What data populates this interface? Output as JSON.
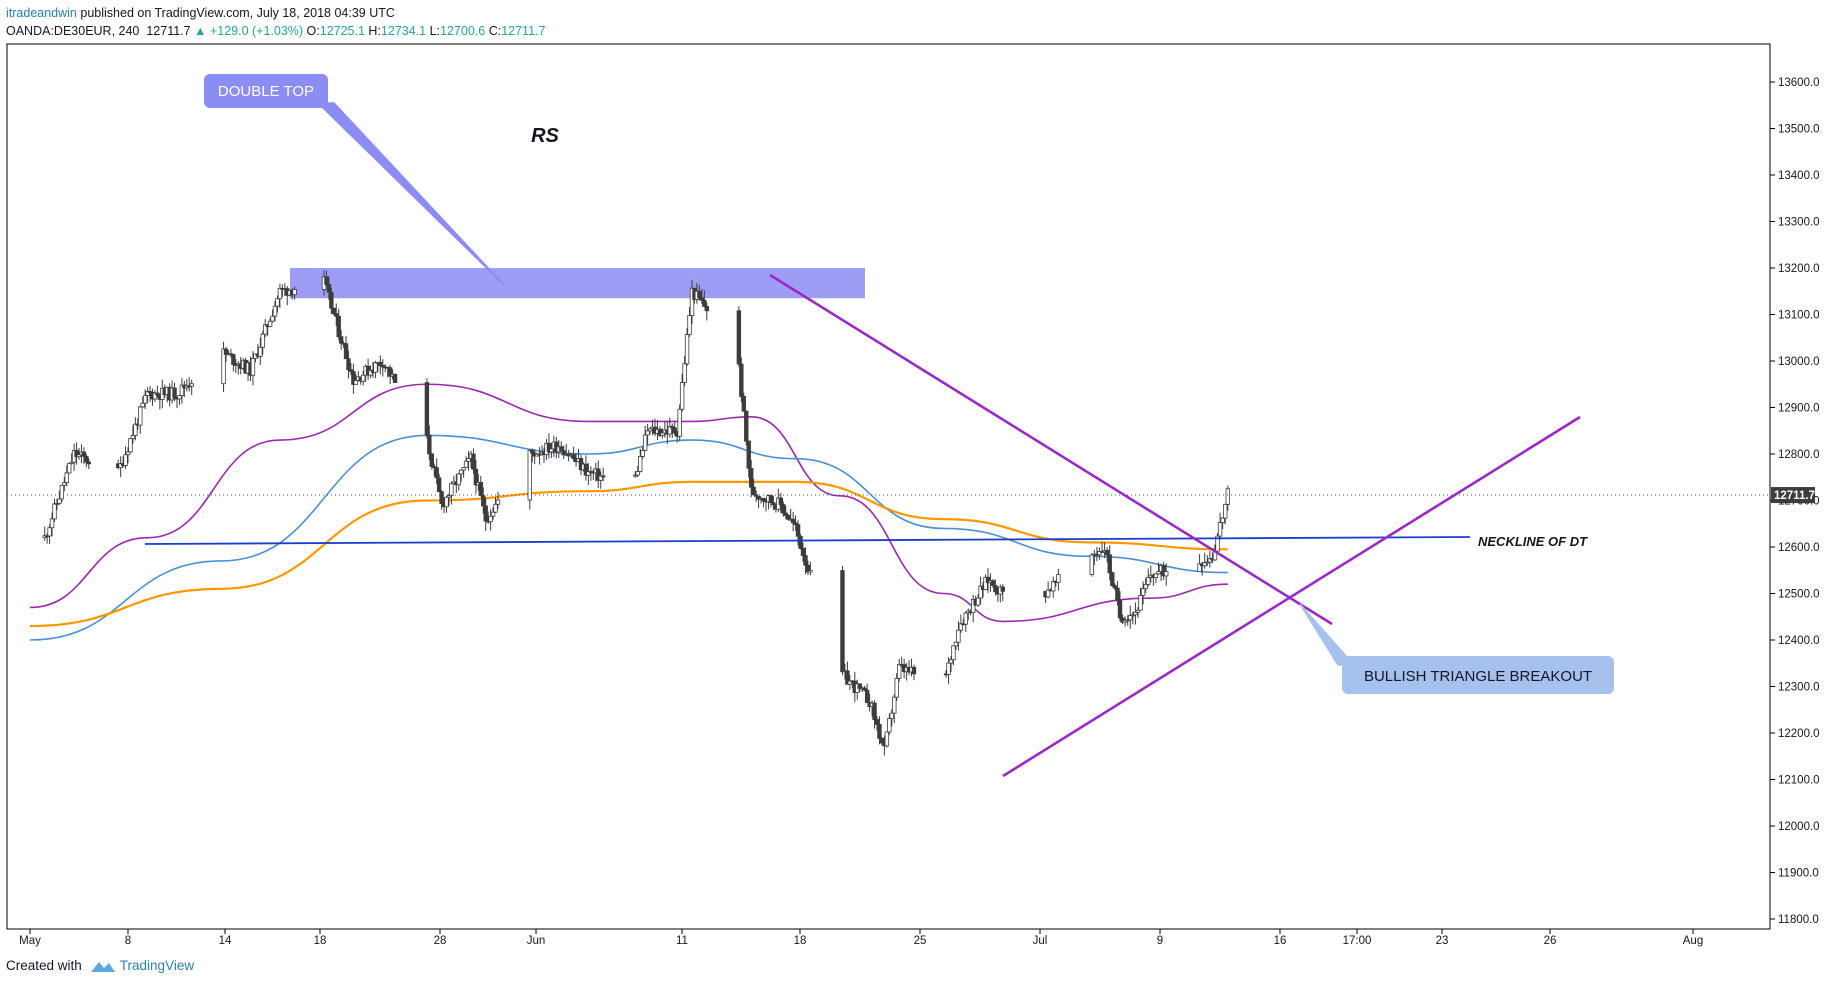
{
  "header": {
    "author": "itradeandwin",
    "published": "published on TradingView.com, July 18, 2018 04:39 UTC",
    "symbol": "OANDA:DE30EUR, 240",
    "last": "12711.7",
    "change": "▲ +129.0 (+1.03%)",
    "o_label": "O:",
    "o_value": "12725.1",
    "h_label": "H:",
    "h_value": "12734.1",
    "l_label": "L:",
    "l_value": "12700.6",
    "c_label": "C:",
    "c_value": "12711.7"
  },
  "footer": {
    "created_with": "Created with",
    "brand": "TradingView"
  },
  "colors": {
    "up": "#ffffff",
    "down": "#3c3c3c",
    "wick": "#3c3c3c",
    "ma_purple": "#9c27b0",
    "ma_blue": "#4a90d9",
    "ma_orange": "#ff9800",
    "trend": "#9c27c9",
    "neckline": "#1a3dcc",
    "zone": "#8c8cf5",
    "callout_top": "#8c8cf5",
    "callout_break": "#a6c1ee"
  },
  "chart_data": {
    "type": "candlestick",
    "title": "",
    "ylim": [
      11770,
      13680
    ],
    "y_ticks": [
      "11800.0",
      "11900.0",
      "12000.0",
      "12100.0",
      "12200.0",
      "12300.0",
      "12400.0",
      "12500.0",
      "12600.0",
      "12700.0",
      "12800.0",
      "12900.0",
      "13000.0",
      "13100.0",
      "13200.0",
      "13300.0",
      "13400.0",
      "13500.0",
      "13600.0"
    ],
    "x_ticks": [
      "May",
      "8",
      "14",
      "18",
      "28",
      "Jun",
      "11",
      "18",
      "25",
      "Jul",
      "9",
      "16",
      "17:00",
      "23",
      "26",
      "Aug"
    ],
    "last_price_label": "12711.7",
    "annotations": {
      "double_top": "DOUBLE TOP",
      "rs": "RS",
      "neckline": "NECKLINE OF DT",
      "breakout": "BULLISH TRIANGLE BREAKOUT"
    },
    "double_top_zone": [
      13135,
      13200
    ],
    "neckline_level": 12615,
    "anchors": [
      [
        "May 2",
        12620
      ],
      [
        "May 4",
        12800
      ],
      [
        "May 7",
        12760
      ],
      [
        "May 9",
        12930
      ],
      [
        "May 11",
        12930
      ],
      [
        "May 14",
        13020
      ],
      [
        "May 16",
        12980
      ],
      [
        "May 18",
        13150
      ],
      [
        "May 21",
        13170
      ],
      [
        "May 23",
        12960
      ],
      [
        "May 25",
        13000
      ],
      [
        "May 28",
        12830
      ],
      [
        "May 29",
        12690
      ],
      [
        "May 31",
        12790
      ],
      [
        "Jun 1",
        12660
      ],
      [
        "Jun 4",
        12800
      ],
      [
        "Jun 6",
        12820
      ],
      [
        "Jun 8",
        12760
      ],
      [
        "Jun 11",
        12730
      ],
      [
        "Jun 12",
        12850
      ],
      [
        "Jun 14",
        12850
      ],
      [
        "Jun 15",
        13150
      ],
      [
        "Jun 18",
        13040
      ],
      [
        "Jun 19",
        12720
      ],
      [
        "Jun 21",
        12690
      ],
      [
        "Jun 22",
        12640
      ],
      [
        "Jun 25",
        12330
      ],
      [
        "Jun 27",
        12270
      ],
      [
        "Jun 28",
        12160
      ],
      [
        "Jun 29",
        12340
      ],
      [
        "Jul 2",
        12300
      ],
      [
        "Jul 3",
        12430
      ],
      [
        "Jul 5",
        12530
      ],
      [
        "Jul 6",
        12500
      ],
      [
        "Jul 9",
        12580
      ],
      [
        "Jul 10",
        12600
      ],
      [
        "Jul 11",
        12450
      ],
      [
        "Jul 12",
        12460
      ],
      [
        "Jul 13",
        12540
      ],
      [
        "Jul 16",
        12570
      ],
      [
        "Jul 17",
        12580
      ],
      [
        "Jul 18",
        12712
      ]
    ],
    "moving_averages": [
      {
        "color": "#9c27b0",
        "points": [
          [
            "May 1",
            12470
          ],
          [
            "May 9",
            12620
          ],
          [
            "May 18",
            12830
          ],
          [
            "May 28",
            12950
          ],
          [
            "Jun 8",
            12870
          ],
          [
            "Jun 15",
            12870
          ],
          [
            "Jun 19",
            12880
          ],
          [
            "Jun 25",
            12710
          ],
          [
            "Jul 2",
            12500
          ],
          [
            "Jul 6",
            12440
          ],
          [
            "Jul 13",
            12490
          ],
          [
            "Jul 18",
            12520
          ]
        ]
      },
      {
        "color": "#4a90d9",
        "points": [
          [
            "May 1",
            12400
          ],
          [
            "May 14",
            12570
          ],
          [
            "May 28",
            12840
          ],
          [
            "Jun 8",
            12800
          ],
          [
            "Jun 15",
            12830
          ],
          [
            "Jun 22",
            12790
          ],
          [
            "Jul 2",
            12640
          ],
          [
            "Jul 9",
            12580
          ],
          [
            "Jul 18",
            12545
          ]
        ]
      },
      {
        "color": "#ff9800",
        "points": [
          [
            "May 1",
            12430
          ],
          [
            "May 14",
            12510
          ],
          [
            "May 28",
            12700
          ],
          [
            "Jun 8",
            12720
          ],
          [
            "Jun 15",
            12740
          ],
          [
            "Jun 22",
            12740
          ],
          [
            "Jul 2",
            12660
          ],
          [
            "Jul 9",
            12610
          ],
          [
            "Jul 18",
            12595
          ]
        ]
      }
    ]
  }
}
